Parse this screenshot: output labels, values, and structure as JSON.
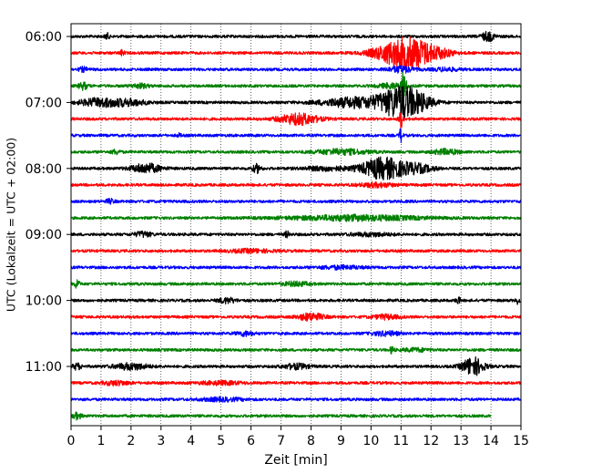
{
  "chart_data": {
    "type": "line",
    "title": "",
    "xlabel": "Zeit  [min]",
    "ylabel": "UTC (Lokalzeit = UTC + 02:00)",
    "xlim": [
      0,
      15
    ],
    "x_ticks": [
      "0",
      "1",
      "2",
      "3",
      "4",
      "5",
      "6",
      "7",
      "8",
      "9",
      "10",
      "11",
      "12",
      "13",
      "14",
      "15"
    ],
    "y_ticks": [
      {
        "label": "06:00",
        "trace": 0
      },
      {
        "label": "07:00",
        "trace": 4
      },
      {
        "label": "08:00",
        "trace": 8
      },
      {
        "label": "09:00",
        "trace": 12
      },
      {
        "label": "10:00",
        "trace": 16
      },
      {
        "label": "11:00",
        "trace": 20
      }
    ],
    "grid": "vertical-dotted",
    "trace_minutes": 15,
    "trace_colors": [
      "#000000",
      "#ff0000",
      "#0000ff",
      "#008000"
    ],
    "traces": [
      {
        "events": [
          {
            "t": 1.2,
            "a": 0.6,
            "w": 0.05
          },
          {
            "t": 13.9,
            "a": 0.9,
            "w": 0.15
          }
        ]
      },
      {
        "events": [
          {
            "t": 1.7,
            "a": 0.5,
            "w": 0.05
          },
          {
            "t": 10.7,
            "a": 1.6,
            "w": 0.5
          },
          {
            "t": 11.4,
            "a": 2.4,
            "w": 0.45
          },
          {
            "t": 12.2,
            "a": 0.8,
            "w": 0.4
          }
        ]
      },
      {
        "events": [
          {
            "t": 0.4,
            "a": 0.4,
            "w": 0.1
          },
          {
            "t": 11.0,
            "a": 0.6,
            "w": 0.3
          },
          {
            "t": 12.5,
            "a": 0.3,
            "w": 0.3
          }
        ]
      },
      {
        "events": [
          {
            "t": 0.4,
            "a": 0.7,
            "w": 0.1
          },
          {
            "t": 2.3,
            "a": 0.4,
            "w": 0.2
          },
          {
            "t": 10.7,
            "a": 0.5,
            "w": 0.3
          },
          {
            "t": 11.1,
            "a": 3.5,
            "w": 0.05
          }
        ]
      },
      {
        "events": [
          {
            "t": 1.0,
            "a": 0.8,
            "w": 0.5
          },
          {
            "t": 2.0,
            "a": 0.5,
            "w": 0.4
          },
          {
            "t": 9.5,
            "a": 1.0,
            "w": 0.8
          },
          {
            "t": 10.9,
            "a": 2.5,
            "w": 0.45
          },
          {
            "t": 11.5,
            "a": 1.4,
            "w": 0.4
          }
        ]
      },
      {
        "events": [
          {
            "t": 7.6,
            "a": 1.1,
            "w": 0.45
          },
          {
            "t": 11.0,
            "a": 1.6,
            "w": 0.05
          }
        ]
      },
      {
        "events": [
          {
            "t": 3.6,
            "a": 0.3,
            "w": 0.05
          },
          {
            "t": 11.0,
            "a": 1.5,
            "w": 0.04
          }
        ]
      },
      {
        "events": [
          {
            "t": 1.5,
            "a": 0.4,
            "w": 0.1
          },
          {
            "t": 9.0,
            "a": 0.5,
            "w": 0.6
          },
          {
            "t": 12.5,
            "a": 0.5,
            "w": 0.3
          }
        ]
      },
      {
        "events": [
          {
            "t": 2.5,
            "a": 0.9,
            "w": 0.35
          },
          {
            "t": 6.2,
            "a": 0.8,
            "w": 0.1
          },
          {
            "t": 8.5,
            "a": 0.4,
            "w": 0.5
          },
          {
            "t": 10.4,
            "a": 2.1,
            "w": 0.5
          },
          {
            "t": 11.5,
            "a": 0.8,
            "w": 0.4
          }
        ]
      },
      {
        "events": [
          {
            "t": 10.2,
            "a": 0.4,
            "w": 0.4
          }
        ]
      },
      {
        "events": [
          {
            "t": 1.3,
            "a": 0.4,
            "w": 0.1
          }
        ]
      },
      {
        "events": [
          {
            "t": 9.5,
            "a": 0.5,
            "w": 1.5
          }
        ]
      },
      {
        "events": [
          {
            "t": 2.4,
            "a": 0.5,
            "w": 0.2
          },
          {
            "t": 7.2,
            "a": 0.6,
            "w": 0.05
          },
          {
            "t": 10.0,
            "a": 0.3,
            "w": 0.5
          }
        ]
      },
      {
        "events": [
          {
            "t": 6.0,
            "a": 0.3,
            "w": 0.5
          }
        ]
      },
      {
        "events": [
          {
            "t": 9.0,
            "a": 0.3,
            "w": 0.5
          }
        ]
      },
      {
        "events": [
          {
            "t": 0.2,
            "a": 1.0,
            "w": 0.05
          },
          {
            "t": 7.5,
            "a": 0.4,
            "w": 0.3
          }
        ]
      },
      {
        "events": [
          {
            "t": 5.2,
            "a": 0.5,
            "w": 0.2
          },
          {
            "t": 12.9,
            "a": 0.7,
            "w": 0.05
          },
          {
            "t": 14.9,
            "a": 0.6,
            "w": 0.05
          }
        ]
      },
      {
        "events": [
          {
            "t": 8.0,
            "a": 0.7,
            "w": 0.3
          },
          {
            "t": 10.5,
            "a": 0.4,
            "w": 0.3
          }
        ]
      },
      {
        "events": [
          {
            "t": 5.8,
            "a": 0.4,
            "w": 0.2
          },
          {
            "t": 10.5,
            "a": 0.4,
            "w": 0.3
          }
        ]
      },
      {
        "events": [
          {
            "t": 10.7,
            "a": 0.7,
            "w": 0.05
          },
          {
            "t": 11.5,
            "a": 0.3,
            "w": 0.3
          }
        ]
      },
      {
        "events": [
          {
            "t": 0.2,
            "a": 0.6,
            "w": 0.1
          },
          {
            "t": 2.0,
            "a": 0.6,
            "w": 0.4
          },
          {
            "t": 7.5,
            "a": 0.5,
            "w": 0.3
          },
          {
            "t": 13.4,
            "a": 1.8,
            "w": 0.25
          }
        ]
      },
      {
        "events": [
          {
            "t": 1.5,
            "a": 0.4,
            "w": 0.3
          },
          {
            "t": 5.0,
            "a": 0.3,
            "w": 0.5
          }
        ]
      },
      {
        "events": [
          {
            "t": 5.0,
            "a": 0.3,
            "w": 0.5
          }
        ]
      },
      {
        "events": [
          {
            "t": 0.2,
            "a": 0.6,
            "w": 0.1
          }
        ],
        "end": 14.0
      }
    ]
  }
}
